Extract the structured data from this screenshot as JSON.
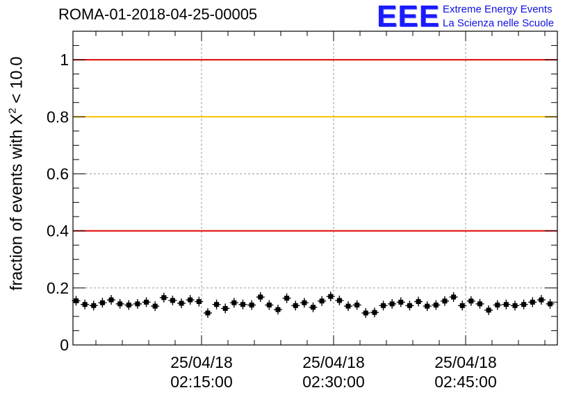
{
  "header": {
    "run_title": "ROMA-01-2018-04-25-00005"
  },
  "logo": {
    "mark": "EEE",
    "line1": "Extreme Energy Events",
    "line2": "La Scienza nelle Scuole",
    "color": "#1a1aff"
  },
  "chart_data": {
    "type": "scatter",
    "ylabel_prefix": "fraction of events with X",
    "ylabel_sup": "2",
    "ylabel_suffix": " < 10.0",
    "xlabel": "",
    "ylim": [
      0,
      1.1
    ],
    "grid": true,
    "x_ticks": [
      {
        "date": "25/04/18",
        "time": "02:15:00"
      },
      {
        "date": "25/04/18",
        "time": "02:30:00"
      },
      {
        "date": "25/04/18",
        "time": "02:45:00"
      }
    ],
    "y_ticks": [
      "0",
      "0.2",
      "0.4",
      "0.6",
      "0.8",
      "1"
    ],
    "reference_lines": [
      {
        "value": 1.0,
        "color": "#e00000"
      },
      {
        "value": 0.8,
        "color": "#ffc000"
      },
      {
        "value": 0.4,
        "color": "#e00000"
      }
    ],
    "series": [
      {
        "marker_color": "#000000",
        "values": [
          0.155,
          0.142,
          0.138,
          0.148,
          0.158,
          0.144,
          0.14,
          0.144,
          0.15,
          0.136,
          0.166,
          0.156,
          0.146,
          0.158,
          0.152,
          0.112,
          0.142,
          0.128,
          0.148,
          0.142,
          0.14,
          0.168,
          0.14,
          0.124,
          0.164,
          0.138,
          0.148,
          0.132,
          0.154,
          0.17,
          0.156,
          0.136,
          0.14,
          0.112,
          0.114,
          0.138,
          0.144,
          0.15,
          0.138,
          0.152,
          0.136,
          0.14,
          0.154,
          0.168,
          0.138,
          0.154,
          0.144,
          0.122,
          0.14,
          0.142,
          0.138,
          0.142,
          0.15,
          0.158,
          0.144
        ]
      }
    ]
  }
}
